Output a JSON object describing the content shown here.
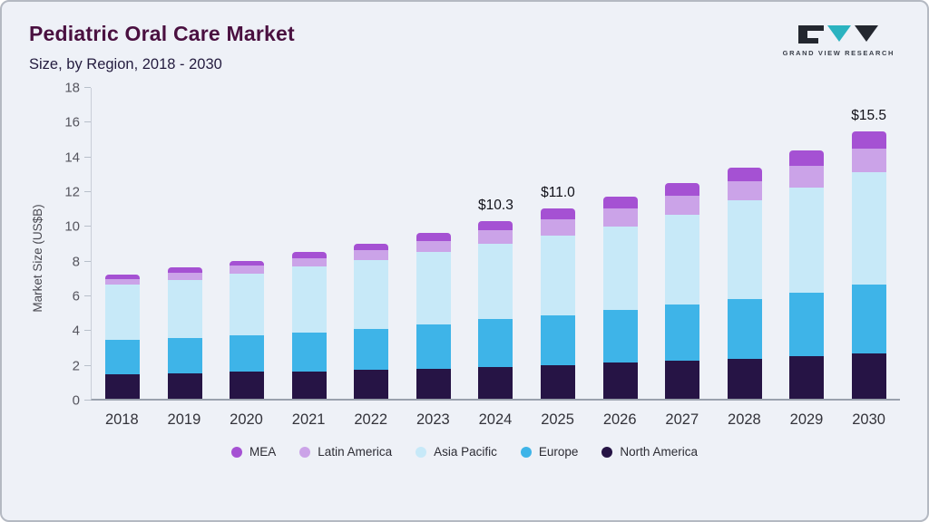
{
  "header": {
    "title": "Pediatric Oral Care Market",
    "subtitle": "Size, by Region, 2018 - 2030",
    "logo_text": "GRAND VIEW RESEARCH"
  },
  "colors": {
    "background": "#eef1f7",
    "title": "#4a1040",
    "logo_teal": "#2bb3c0",
    "logo_dark": "#23272f"
  },
  "chart_data": {
    "type": "bar",
    "stacked": true,
    "title": "Pediatric Oral Care Market",
    "subtitle": "Size, by Region, 2018 - 2030",
    "xlabel": "",
    "ylabel": "Market Size (US$B)",
    "ylim": [
      0,
      18
    ],
    "ytick_step": 2,
    "grid": false,
    "legend_position": "bottom",
    "categories": [
      "2018",
      "2019",
      "2020",
      "2021",
      "2022",
      "2023",
      "2024",
      "2025",
      "2026",
      "2027",
      "2028",
      "2029",
      "2030"
    ],
    "series": [
      {
        "name": "North America",
        "color": "#261445",
        "values": [
          1.4,
          1.45,
          1.55,
          1.6,
          1.7,
          1.75,
          1.85,
          1.95,
          2.1,
          2.2,
          2.3,
          2.45,
          2.6
        ]
      },
      {
        "name": "Europe",
        "color": "#3eb4e8",
        "values": [
          2.0,
          2.05,
          2.1,
          2.25,
          2.35,
          2.55,
          2.75,
          2.9,
          3.05,
          3.25,
          3.5,
          3.7,
          4.0
        ]
      },
      {
        "name": "Asia Pacific",
        "color": "#c7e9f8",
        "values": [
          3.2,
          3.4,
          3.6,
          3.8,
          4.0,
          4.2,
          4.4,
          4.6,
          4.8,
          5.2,
          5.7,
          6.1,
          6.5
        ]
      },
      {
        "name": "Latin America",
        "color": "#cba3e8",
        "values": [
          0.35,
          0.4,
          0.45,
          0.5,
          0.55,
          0.65,
          0.75,
          0.95,
          1.05,
          1.1,
          1.1,
          1.25,
          1.4
        ]
      },
      {
        "name": "MEA",
        "color": "#a551d3",
        "values": [
          0.25,
          0.3,
          0.3,
          0.35,
          0.4,
          0.45,
          0.55,
          0.6,
          0.7,
          0.75,
          0.8,
          0.9,
          1.0
        ]
      }
    ],
    "totals": [
      7.2,
      7.6,
      8.0,
      8.5,
      9.0,
      9.6,
      10.3,
      11.0,
      11.7,
      12.5,
      13.4,
      14.4,
      15.5
    ],
    "annotations": [
      {
        "category": "2024",
        "label": "$10.3"
      },
      {
        "category": "2025",
        "label": "$11.0"
      },
      {
        "category": "2030",
        "label": "$15.5"
      }
    ],
    "legend": [
      "MEA",
      "Latin America",
      "Asia Pacific",
      "Europe",
      "North America"
    ]
  }
}
